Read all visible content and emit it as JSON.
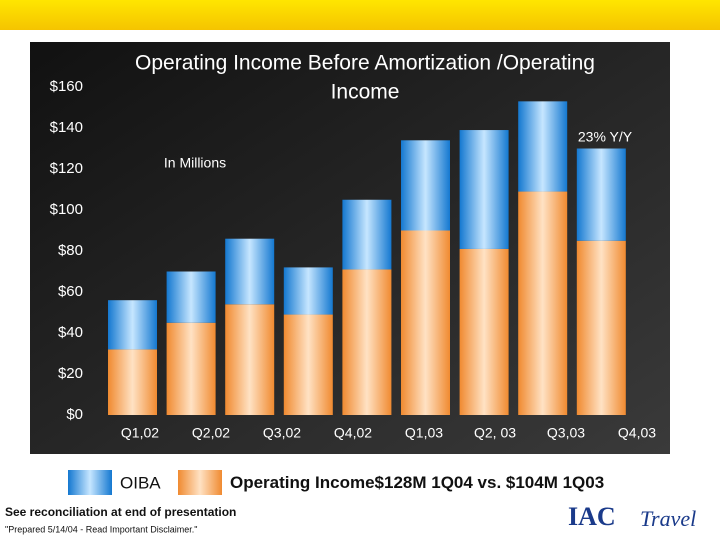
{
  "chart_data": {
    "type": "stacked_bar",
    "title": "Operating Income Before Amortization /Operating Income",
    "subtitle": "In Millions",
    "annotation": "23% Y/Y",
    "categories": [
      "Q1,02",
      "Q2,02",
      "Q3,02",
      "Q4,02",
      "Q1,03",
      "Q2, 03",
      "Q3,03",
      "Q4,03",
      null
    ],
    "series": [
      {
        "name": "Operating Income",
        "color": "#f59a4a",
        "values": [
          32,
          45,
          54,
          49,
          71,
          90,
          81,
          109,
          85
        ]
      },
      {
        "name": "OIBA",
        "color": "#1e8fe0",
        "values": [
          24,
          25,
          32,
          23,
          34,
          44,
          58,
          44,
          45
        ]
      }
    ],
    "legend_note": "$128M 1Q04 vs. $104M 1Q03",
    "ylim": [
      0,
      160
    ],
    "yticks": [
      {
        "value": 0,
        "label": "$0"
      },
      {
        "value": 20,
        "label": "$20"
      },
      {
        "value": 40,
        "label": "$40"
      },
      {
        "value": 60,
        "label": "$60"
      },
      {
        "value": 80,
        "label": "$80"
      },
      {
        "value": 100,
        "label": "$100"
      },
      {
        "value": 120,
        "label": "$120"
      },
      {
        "value": 140,
        "label": "$140"
      },
      {
        "value": 160,
        "label": "$160"
      }
    ],
    "grid": false
  },
  "footer": {
    "note": "See reconciliation at end of presentation",
    "disclaimer": "\"Prepared 5/14/04 - Read Important Disclaimer.\"",
    "logo": "IAC",
    "logo_sub": "Travel"
  }
}
